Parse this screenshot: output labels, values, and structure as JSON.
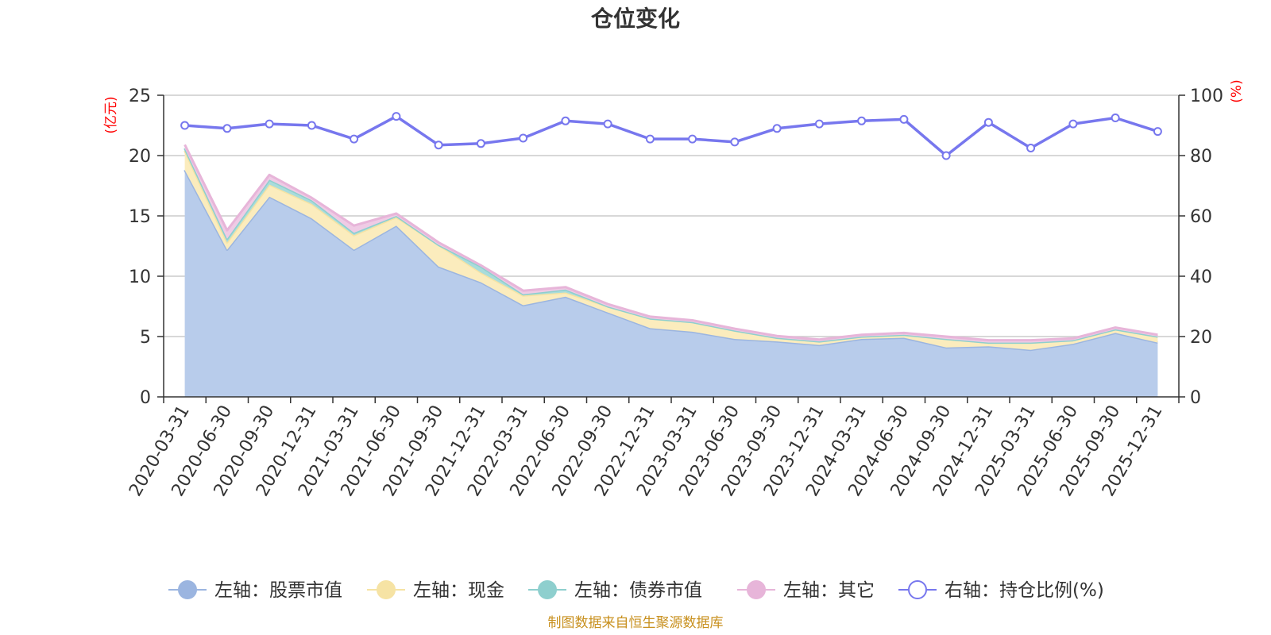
{
  "chart_data": {
    "type": "area",
    "title": "仓位变化",
    "left_axis": {
      "unit": "(亿元)",
      "min": 0,
      "max": 25,
      "ticks": [
        "0",
        "5",
        "10",
        "15",
        "20",
        "25"
      ]
    },
    "right_axis": {
      "unit": "(%)",
      "min": 0,
      "max": 100,
      "ticks": [
        "0",
        "20",
        "40",
        "60",
        "80",
        "100"
      ]
    },
    "categories": [
      "2020-03-31",
      "2020-06-30",
      "2020-09-30",
      "2020-12-31",
      "2021-03-31",
      "2021-06-30",
      "2021-09-30",
      "2021-12-31",
      "2022-03-31",
      "2022-06-30",
      "2022-09-30",
      "2022-12-31",
      "2023-03-31",
      "2023-06-30",
      "2023-09-30",
      "2023-12-31",
      "2024-03-31",
      "2024-06-30",
      "2024-09-30",
      "2024-12-31",
      "2025-03-31",
      "2025-06-30",
      "2025-09-30",
      "2025-12-31"
    ],
    "series": [
      {
        "name": "股票市值",
        "axis": "left",
        "stacked": true,
        "color": "#9bb5e0",
        "fill": "#b8cceb",
        "values": [
          18.8,
          12.2,
          16.6,
          14.8,
          12.2,
          14.2,
          10.8,
          9.5,
          7.6,
          8.3,
          7.0,
          5.7,
          5.4,
          4.8,
          4.6,
          4.3,
          4.8,
          4.9,
          4.1,
          4.2,
          3.9,
          4.4,
          5.3,
          4.5
        ]
      },
      {
        "name": "现金",
        "axis": "left",
        "stacked": true,
        "color": "#f6e3a4",
        "fill": "#fbecbd",
        "values": [
          1.6,
          0.6,
          1.0,
          1.2,
          1.2,
          0.7,
          1.8,
          0.8,
          0.8,
          0.35,
          0.5,
          0.8,
          0.8,
          0.7,
          0.3,
          0.3,
          0.2,
          0.25,
          0.7,
          0.3,
          0.6,
          0.3,
          0.3,
          0.5
        ]
      },
      {
        "name": "债券市值",
        "axis": "left",
        "stacked": true,
        "color": "#8ecfce",
        "fill": "#a9dcdb",
        "values": [
          0.2,
          0.3,
          0.4,
          0.3,
          0.2,
          0.1,
          0.0,
          0.5,
          0.1,
          0.25,
          0.0,
          0.0,
          0.0,
          0.0,
          0.0,
          0.0,
          0.0,
          0.0,
          0.0,
          0.0,
          0.0,
          0.0,
          0.0,
          0.0
        ]
      },
      {
        "name": "其它",
        "axis": "left",
        "stacked": true,
        "color": "#e7b5d9",
        "fill": "#efcbe5",
        "values": [
          0.3,
          0.7,
          0.4,
          0.2,
          0.6,
          0.2,
          0.2,
          0.1,
          0.3,
          0.2,
          0.2,
          0.15,
          0.15,
          0.15,
          0.15,
          0.15,
          0.15,
          0.15,
          0.2,
          0.2,
          0.2,
          0.15,
          0.15,
          0.15
        ]
      },
      {
        "name": "持仓比例(%)",
        "axis": "right",
        "stacked": false,
        "color": "#7777ee",
        "values": [
          90,
          89,
          90.5,
          90,
          85.5,
          93,
          83.5,
          84,
          85.8,
          91.5,
          90.5,
          85.5,
          85.5,
          84.5,
          89,
          90.5,
          91.5,
          92,
          80,
          91,
          82.5,
          90.5,
          92.5,
          88
        ]
      }
    ],
    "legend": {
      "position": "bottom",
      "entries": [
        "左轴：股票市值",
        "左轴：现金",
        "左轴：债券市值",
        "左轴：其它",
        "右轴：持仓比例(%)"
      ]
    },
    "grid": true,
    "source": "制图数据来自恒生聚源数据库"
  }
}
